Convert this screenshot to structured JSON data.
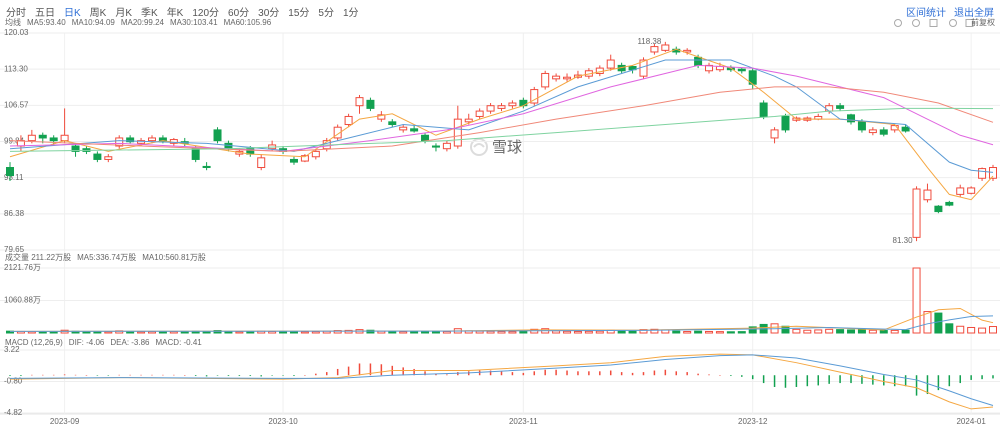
{
  "toolbar": {
    "tabs": [
      "分时",
      "五日",
      "日K",
      "周K",
      "月K",
      "季K",
      "年K",
      "120分",
      "60分",
      "30分",
      "15分",
      "5分",
      "1分"
    ],
    "active": "日K",
    "actions": [
      "区间统计",
      "退出全屏"
    ]
  },
  "chart_data": [
    {
      "type": "candlestick",
      "title": "均线",
      "adjust": "前复权",
      "watermark": "雪球",
      "up_color": "#f04b3c",
      "down_color": "#12a150",
      "categories": [
        null,
        null,
        null,
        null,
        null,
        "2023-09",
        null,
        null,
        null,
        null,
        null,
        null,
        null,
        null,
        null,
        null,
        null,
        null,
        null,
        null,
        null,
        null,
        null,
        null,
        null,
        "2023-10",
        null,
        null,
        null,
        null,
        null,
        null,
        null,
        null,
        null,
        null,
        null,
        null,
        null,
        null,
        null,
        null,
        null,
        null,
        null,
        null,
        null,
        "2023-11",
        null,
        null,
        null,
        null,
        null,
        null,
        null,
        null,
        null,
        null,
        null,
        null,
        null,
        null,
        null,
        null,
        null,
        null,
        null,
        null,
        "2023-12",
        null,
        null,
        null,
        null,
        null,
        null,
        null,
        null,
        null,
        null,
        null,
        null,
        null,
        null,
        null,
        null,
        null,
        null,
        null,
        "2024-01",
        null,
        null
      ],
      "open": [
        95,
        99,
        100,
        101,
        100.5,
        100,
        99,
        98.5,
        97.5,
        96.5,
        99,
        100.5,
        99.5,
        100,
        100.5,
        99.5,
        99.8,
        98.5,
        95.2,
        102,
        99.5,
        97.5,
        98.5,
        95,
        98.5,
        98.5,
        96.5,
        96.2,
        97,
        98.5,
        100.5,
        103,
        106.5,
        107.5,
        104,
        103.5,
        102,
        102.2,
        101,
        99,
        98.5,
        99,
        103.5,
        104.5,
        105.5,
        106,
        106.5,
        107.5,
        107,
        110,
        111.5,
        111.5,
        111.8,
        112,
        112.5,
        113.5,
        114,
        113.8,
        112,
        116.5,
        116.8,
        117,
        116.5,
        115.5,
        113,
        113.2,
        113.5,
        113.3,
        113,
        107,
        100.5,
        104.5,
        103.8,
        103.8,
        104,
        105.5,
        106.5,
        104.8,
        103.5,
        101.5,
        102,
        102,
        102.5,
        82,
        89,
        87.8,
        88.5,
        90,
        90.2,
        93,
        93
      ],
      "high": [
        96,
        101,
        102,
        101.5,
        101,
        106,
        99.5,
        99,
        98,
        97.5,
        101,
        101,
        100.5,
        101,
        101,
        100.5,
        100.5,
        99,
        96,
        102.5,
        100,
        98.5,
        99,
        97.5,
        100,
        99,
        97,
        97.5,
        98.5,
        100.5,
        103,
        105,
        108.5,
        108,
        105.5,
        104,
        103,
        103,
        101.5,
        99.5,
        100,
        106.5,
        105,
        106,
        107,
        107,
        107.5,
        108,
        110,
        113,
        112.5,
        112.5,
        113,
        113.5,
        114,
        116,
        114.5,
        114,
        115.5,
        118,
        118.38,
        117.5,
        117.2,
        116,
        114.5,
        114.5,
        114,
        113.5,
        113.5,
        107.5,
        102.5,
        105,
        104.5,
        104.5,
        105,
        107,
        107,
        105,
        104,
        102.5,
        102.5,
        103,
        103,
        91.5,
        92,
        88,
        88.8,
        91.8,
        91.5,
        95,
        95.5
      ],
      "low": [
        92.5,
        98,
        99.5,
        99.5,
        99,
        99.5,
        97,
        97.5,
        96,
        96,
        98.5,
        99.5,
        99,
        99.5,
        99.5,
        99,
        99,
        96,
        94.5,
        99.5,
        98,
        97,
        97,
        94.5,
        98,
        97.5,
        95.5,
        96,
        96.5,
        98,
        100,
        102.5,
        105,
        105.5,
        103.5,
        102.5,
        101.5,
        101.5,
        99.5,
        98,
        98,
        98.5,
        103,
        104,
        105,
        105.5,
        106,
        106,
        106.5,
        109.5,
        111,
        111,
        111.5,
        111.5,
        112,
        113,
        112.5,
        112.5,
        111.5,
        116,
        116.5,
        116,
        116,
        113.5,
        112.5,
        112.8,
        112.8,
        112.5,
        109.5,
        104,
        99.5,
        101.5,
        103.5,
        103.5,
        103.8,
        105,
        105.5,
        103,
        101.5,
        101,
        100.8,
        101.5,
        101.5,
        81.3,
        88.5,
        86.5,
        87.8,
        89.5,
        90,
        92.5,
        92.5
      ],
      "close": [
        93.5,
        100,
        101,
        100.5,
        100,
        101,
        98,
        98,
        96.5,
        97,
        100.5,
        99.8,
        100,
        100.5,
        99.8,
        100.2,
        99.5,
        96.5,
        95,
        100,
        98.5,
        98,
        97.5,
        96.8,
        99.2,
        98,
        96,
        97.2,
        98,
        100,
        102.5,
        104.5,
        108,
        106,
        104.8,
        103,
        102.5,
        101.8,
        100,
        98.8,
        99.5,
        104,
        104,
        105.5,
        106.5,
        106.5,
        107,
        106.5,
        109.5,
        112.5,
        112,
        111.8,
        112.2,
        113,
        113.5,
        115,
        113,
        113.2,
        115,
        117.5,
        117.8,
        116.5,
        116.8,
        114,
        114,
        113.8,
        113.2,
        113,
        110.5,
        104.5,
        102,
        102,
        104.2,
        104.2,
        104.5,
        106.5,
        106,
        103.5,
        102,
        102,
        101.2,
        102.8,
        101.8,
        91,
        90.8,
        86.8,
        88,
        91.2,
        91.2,
        94.8,
        95
      ],
      "ylim": [
        79.65,
        120.03
      ],
      "yticks": [
        120.03,
        {
          "value": 113.3,
          "label": "113.30"
        },
        106.57,
        99.84,
        93.11,
        86.38,
        79.65
      ],
      "annotations": [
        {
          "value": 118.38,
          "label": "118.38"
        },
        {
          "value": 81.3,
          "label": "81.30"
        }
      ],
      "series": [
        {
          "name": "MA5:93.40",
          "color": "#f5a742",
          "x": [
            0,
            5,
            9,
            14,
            22,
            27,
            32,
            35,
            39,
            43,
            47,
            52,
            57,
            61,
            66,
            69,
            72,
            76,
            81,
            84,
            86,
            88,
            90
          ],
          "values": [
            97,
            100,
            98,
            100,
            97.5,
            97,
            104,
            105,
            101,
            104,
            106.5,
            112,
            114,
            117,
            113.5,
            109,
            104,
            104,
            103,
            95,
            90,
            89,
            93.4
          ]
        },
        {
          "name": "MA10:94.09",
          "color": "#5b9bd5",
          "x": [
            0,
            10,
            18,
            26,
            31,
            36,
            42,
            47,
            52,
            56,
            60,
            66,
            70,
            72,
            76,
            82,
            86,
            88,
            90
          ],
          "values": [
            98.5,
            100,
            99.5,
            98,
            100.5,
            103,
            102,
            105.5,
            110,
            112.5,
            115,
            115,
            112,
            110,
            104,
            103,
            96,
            94.5,
            94.09
          ]
        },
        {
          "name": "MA20:99.24",
          "color": "#e066e0",
          "x": [
            0,
            10,
            25,
            33,
            40,
            47,
            55,
            63,
            68,
            72,
            80,
            84,
            87,
            90
          ],
          "values": [
            99,
            99.5,
            98,
            100,
            102,
            105,
            110,
            114,
            113.5,
            112,
            108,
            104,
            101,
            99.24
          ]
        },
        {
          "name": "MA30:103.41",
          "color": "#f08878",
          "x": [
            0,
            12,
            25,
            35,
            43,
            50,
            58,
            65,
            70,
            75,
            80,
            85,
            90
          ],
          "values": [
            100,
            99,
            98,
            99,
            101.5,
            104,
            106.5,
            109,
            110,
            110,
            109,
            107,
            103.41
          ]
        },
        {
          "name": "MA60:105.96",
          "color": "#7fd3a0",
          "x": [
            0,
            20,
            40,
            50,
            60,
            70,
            75,
            82,
            86,
            90
          ],
          "values": [
            98,
            98.5,
            100,
            101.5,
            103,
            104.5,
            105.5,
            106,
            106,
            105.96
          ]
        }
      ]
    },
    {
      "type": "volume",
      "title": "成交量 211.22万股",
      "values": [
        60,
        50,
        45,
        40,
        45,
        90,
        55,
        40,
        45,
        40,
        70,
        45,
        40,
        45,
        40,
        45,
        40,
        55,
        45,
        80,
        50,
        40,
        45,
        60,
        50,
        40,
        45,
        40,
        45,
        60,
        80,
        85,
        110,
        90,
        60,
        50,
        45,
        40,
        50,
        45,
        50,
        140,
        70,
        60,
        55,
        50,
        45,
        60,
        120,
        140,
        70,
        55,
        50,
        55,
        60,
        90,
        70,
        60,
        110,
        120,
        100,
        60,
        50,
        60,
        50,
        45,
        40,
        45,
        200,
        280,
        300,
        220,
        120,
        90,
        100,
        120,
        110,
        100,
        130,
        90,
        80,
        85,
        90,
        2121.76,
        700,
        650,
        300,
        220,
        180,
        160,
        211.22
      ],
      "ylim": [
        0,
        2121.76
      ],
      "yticks": [
        {
          "value": 2121.76,
          "label": "2121.76万"
        },
        {
          "value": 1060.88,
          "label": "1060.88万"
        }
      ],
      "series": [
        {
          "name": "MA5:336.74万股",
          "color": "#f5a742",
          "x": [
            0,
            40,
            48,
            58,
            68,
            72,
            80,
            83,
            85,
            87,
            89,
            90
          ],
          "values": [
            55,
            65,
            100,
            95,
            160,
            220,
            100,
            520,
            760,
            800,
            420,
            336.74
          ]
        },
        {
          "name": "MA10:560.81万股",
          "color": "#5b9bd5",
          "x": [
            0,
            40,
            58,
            70,
            75,
            82,
            84,
            86,
            88,
            90
          ],
          "values": [
            55,
            60,
            85,
            140,
            180,
            110,
            300,
            430,
            540,
            560.81
          ]
        }
      ]
    },
    {
      "type": "macd",
      "title": "MACD (12,26,9)",
      "hist_name": "MACD: -0.41",
      "hist_color": "#12a150",
      "values": [
        -0.1,
        -0.1,
        0.05,
        0.05,
        0.05,
        0.1,
        0.05,
        0,
        -0.05,
        -0.05,
        0.05,
        0.05,
        0.05,
        0.05,
        0.05,
        0.05,
        0,
        -0.1,
        -0.15,
        -0.05,
        -0.1,
        -0.1,
        -0.1,
        -0.15,
        -0.05,
        -0.05,
        -0.1,
        0,
        0.2,
        0.4,
        0.8,
        1.1,
        1.5,
        1.5,
        1.4,
        1.2,
        1.0,
        0.8,
        0.5,
        0.2,
        0.1,
        0.4,
        0.5,
        0.6,
        0.6,
        0.5,
        0.4,
        0.3,
        0.5,
        0.7,
        0.7,
        0.6,
        0.5,
        0.5,
        0.5,
        0.6,
        0.4,
        0.3,
        0.4,
        0.6,
        0.7,
        0.5,
        0.4,
        0.2,
        0.1,
        0,
        -0.1,
        -0.2,
        -0.5,
        -1.0,
        -1.5,
        -1.6,
        -1.5,
        -1.4,
        -1.3,
        -1.1,
        -1.0,
        -1.0,
        -1.1,
        -1.2,
        -1.3,
        -1.4,
        -1.4,
        -2.6,
        -2.4,
        -1.9,
        -1.4,
        -1.0,
        -0.6,
        -0.5,
        -0.41
      ],
      "ylim": [
        -4.82,
        3.22
      ],
      "yticks": [
        3.22,
        {
          "value": -0.8,
          "label": "-0.80"
        },
        -4.82
      ],
      "series": [
        {
          "name": "DIF: -4.06",
          "color": "#f5a742",
          "x": [
            0,
            10,
            25,
            30,
            35,
            42,
            50,
            55,
            60,
            65,
            68,
            72,
            76,
            80,
            83,
            86,
            88,
            90
          ],
          "values": [
            -0.5,
            -0.3,
            -0.5,
            -0.3,
            0.6,
            0.6,
            1.2,
            1.6,
            2.4,
            2.7,
            2.6,
            1.6,
            0.4,
            -0.8,
            -1.6,
            -3.4,
            -4.3,
            -4.06
          ]
        },
        {
          "name": "DEA: -3.86",
          "color": "#5b9bd5",
          "x": [
            0,
            10,
            25,
            30,
            35,
            42,
            50,
            55,
            60,
            65,
            68,
            72,
            76,
            80,
            83,
            86,
            88,
            90
          ],
          "values": [
            -0.4,
            -0.3,
            -0.4,
            -0.4,
            0,
            0.3,
            0.9,
            1.3,
            2.0,
            2.5,
            2.6,
            2.2,
            1.2,
            0.1,
            -0.6,
            -2.0,
            -3.0,
            -3.86
          ]
        }
      ]
    }
  ]
}
